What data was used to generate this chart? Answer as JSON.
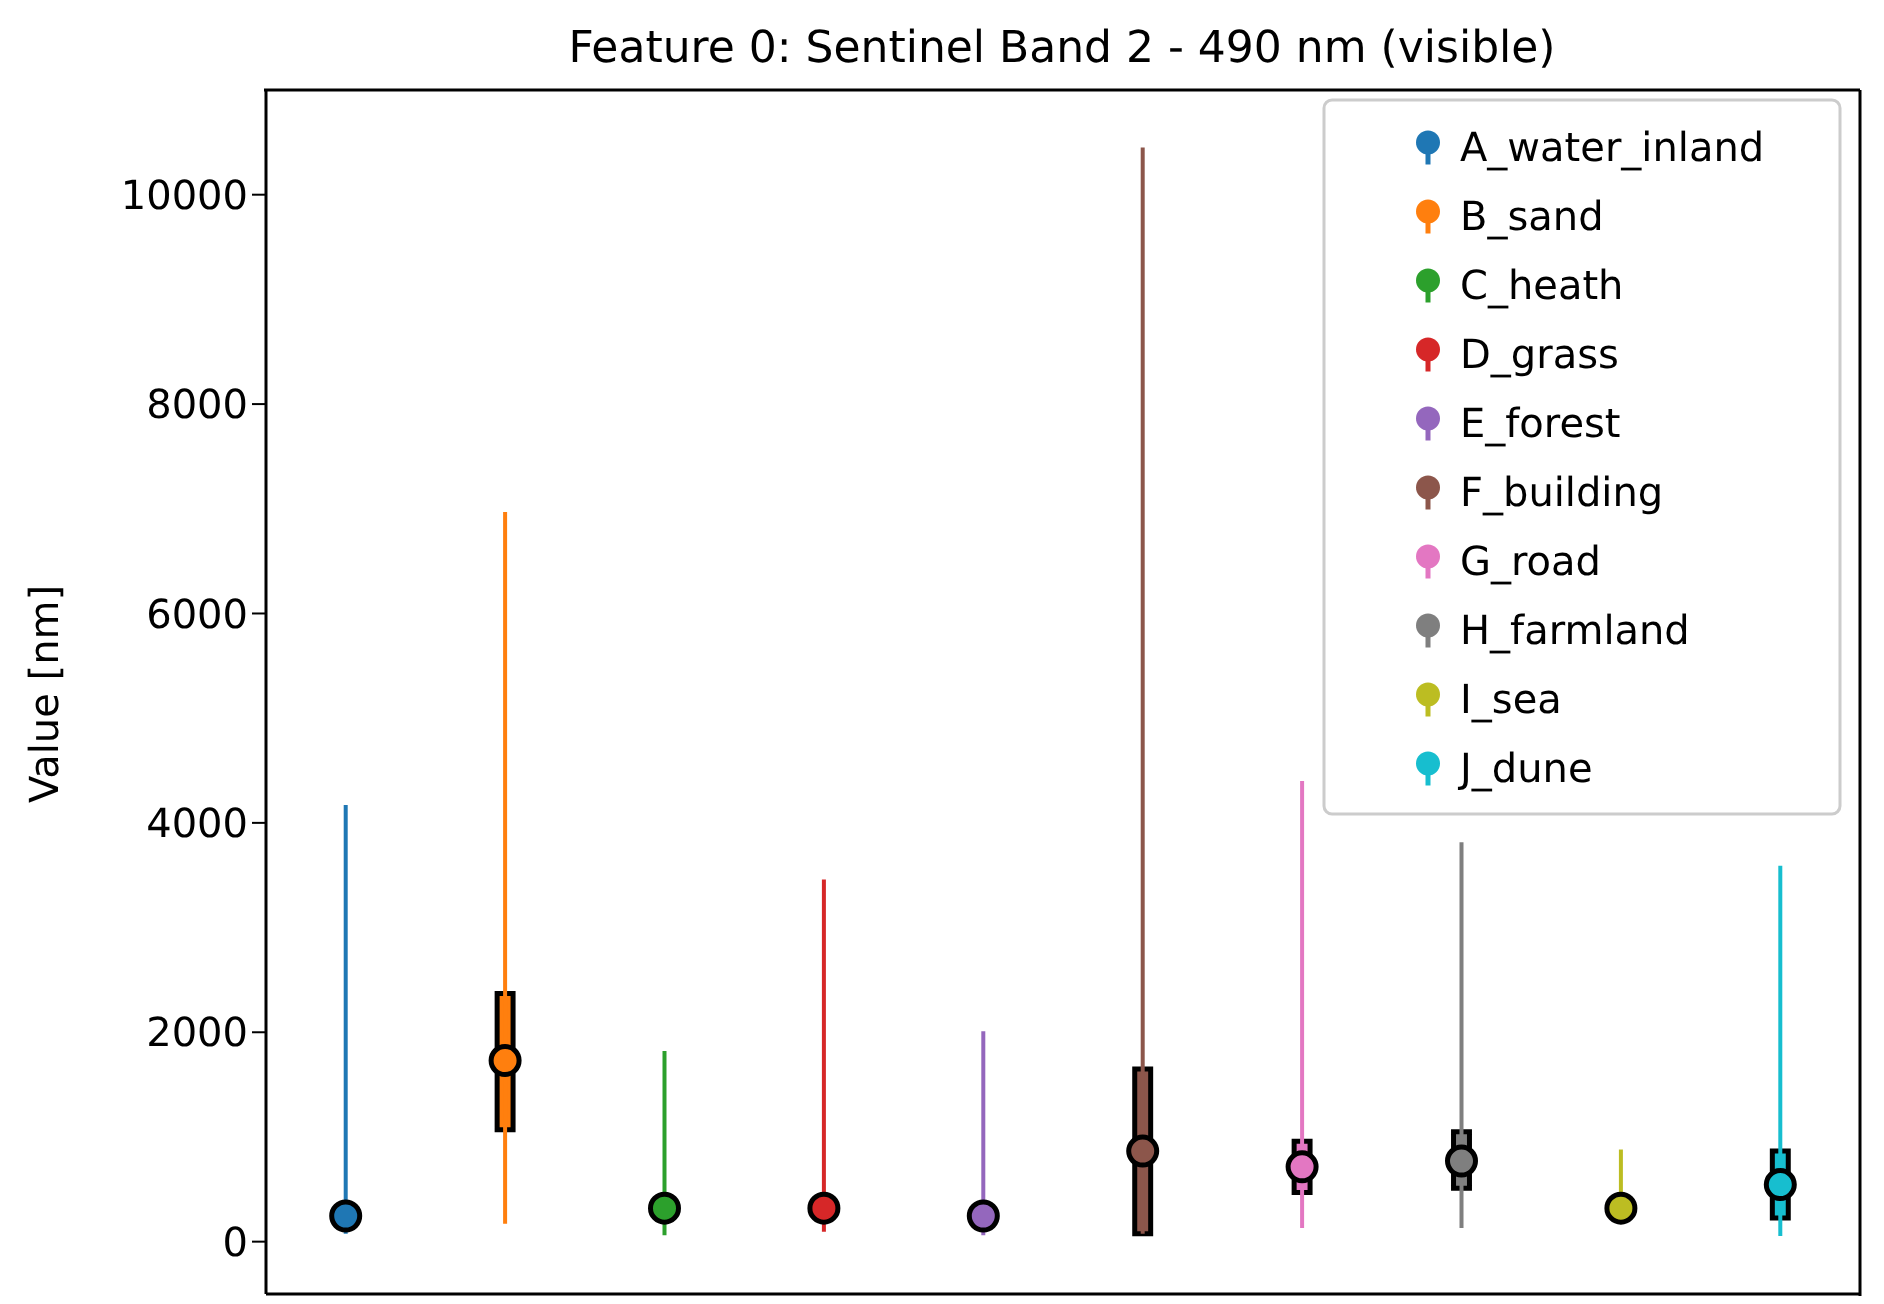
{
  "chart_data": {
    "type": "box",
    "title": "Feature 0: Sentinel Band 2 - 490 nm (visible)",
    "ylabel": "Value [nm]",
    "categories": [
      null,
      null,
      null,
      null,
      null,
      null,
      null,
      null,
      null,
      null
    ],
    "ylim": [
      -500,
      11000
    ],
    "yticks": [
      0,
      2000,
      4000,
      6000,
      8000,
      10000
    ],
    "tick_labels": "y",
    "legend": "top right",
    "marker": "circle",
    "grid": false,
    "series": [
      {
        "name": "A_water_inland",
        "color": "#1f77b4",
        "boxes": [
          {
            "low": 75,
            "q1": 180,
            "median": 245,
            "q3": 310,
            "high": 4170
          },
          null,
          null,
          null,
          null,
          null,
          null,
          null,
          null,
          null
        ]
      },
      {
        "name": "B_sand",
        "color": "#ff7f0e",
        "boxes": [
          null,
          {
            "low": 170,
            "q1": 1070,
            "median": 1730,
            "q3": 2370,
            "high": 6970
          },
          null,
          null,
          null,
          null,
          null,
          null,
          null,
          null
        ]
      },
      {
        "name": "C_heath",
        "color": "#2ca02c",
        "boxes": [
          null,
          null,
          {
            "low": 60,
            "q1": 230,
            "median": 320,
            "q3": 410,
            "high": 1820
          },
          null,
          null,
          null,
          null,
          null,
          null,
          null
        ]
      },
      {
        "name": "D_grass",
        "color": "#d62728",
        "boxes": [
          null,
          null,
          null,
          {
            "low": 95,
            "q1": 240,
            "median": 320,
            "q3": 400,
            "high": 3460
          },
          null,
          null,
          null,
          null,
          null,
          null
        ]
      },
      {
        "name": "E_forest",
        "color": "#9467bd",
        "boxes": [
          null,
          null,
          null,
          null,
          {
            "low": 60,
            "q1": 170,
            "median": 245,
            "q3": 320,
            "high": 2010
          },
          null,
          null,
          null,
          null,
          null
        ]
      },
      {
        "name": "F_building",
        "color": "#8c564b",
        "boxes": [
          null,
          null,
          null,
          null,
          null,
          {
            "low": 75,
            "q1": 75,
            "median": 865,
            "q3": 1650,
            "high": 10450
          },
          null,
          null,
          null,
          null
        ]
      },
      {
        "name": "G_road",
        "color": "#e377c2",
        "boxes": [
          null,
          null,
          null,
          null,
          null,
          null,
          {
            "low": 130,
            "q1": 470,
            "median": 715,
            "q3": 960,
            "high": 4400
          },
          null,
          null,
          null
        ]
      },
      {
        "name": "H_farmland",
        "color": "#7f7f7f",
        "boxes": [
          null,
          null,
          null,
          null,
          null,
          null,
          null,
          {
            "low": 130,
            "q1": 510,
            "median": 770,
            "q3": 1050,
            "high": 3815
          },
          null,
          null
        ]
      },
      {
        "name": "I_sea",
        "color": "#bcbd22",
        "boxes": [
          null,
          null,
          null,
          null,
          null,
          null,
          null,
          null,
          {
            "low": 220,
            "q1": 250,
            "median": 320,
            "q3": 390,
            "high": 880
          },
          null
        ]
      },
      {
        "name": "J_dune",
        "color": "#17becf",
        "boxes": [
          null,
          null,
          null,
          null,
          null,
          null,
          null,
          null,
          null,
          {
            "low": 55,
            "q1": 225,
            "median": 545,
            "q3": 865,
            "high": 3590
          }
        ]
      }
    ]
  }
}
